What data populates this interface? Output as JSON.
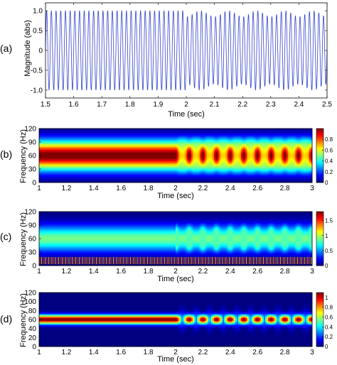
{
  "chart_data": [
    {
      "type": "line",
      "panel_label": "(a)",
      "xlabel": "Time (sec)",
      "ylabel": "Magnitude (abs)",
      "xlim": [
        1.5,
        2.5
      ],
      "ylim": [
        -1.2,
        1.2
      ],
      "x_ticks": [
        "1.5",
        "1.6",
        "1.7",
        "1.8",
        "1.9",
        "2",
        "2.1",
        "2.2",
        "2.3",
        "2.4",
        "2.5"
      ],
      "y_ticks": [
        "-1.0",
        "-0.5",
        "0",
        "0.5",
        "1.0"
      ],
      "series": [
        {
          "color": "#3344cc",
          "segments": [
            {
              "t_start": 1.5,
              "t_end": 2.0,
              "frequency_hz": 60,
              "amplitude": 1.0
            },
            {
              "t_start": 2.0,
              "t_end": 2.5,
              "frequency_hz": 60,
              "amplitude": 1.0,
              "modulation_hz": 10,
              "modulation_depth": 0.15
            }
          ]
        }
      ]
    },
    {
      "type": "heatmap",
      "panel_label": "(b)",
      "xlabel": "Time (sec)",
      "ylabel": "Frequency (Hz)",
      "xlim": [
        1,
        3
      ],
      "ylim": [
        0,
        120
      ],
      "x_ticks": [
        "1",
        "1.2",
        "1.4",
        "1.6",
        "1.8",
        "2",
        "2.2",
        "2.4",
        "2.6",
        "2.8",
        "3"
      ],
      "y_ticks": [
        "0",
        "30",
        "60",
        "90",
        "120"
      ],
      "colorbar_ticks": [
        "0",
        "0.2",
        "0.4",
        "0.6",
        "0.8"
      ],
      "colorbar_range": [
        0,
        1
      ],
      "colormap": "jet",
      "center_frequency_hz": 60,
      "modulation_start_sec": 2.0,
      "modulation_hz": 10
    },
    {
      "type": "heatmap",
      "panel_label": "(c)",
      "xlabel": "Time (sec)",
      "ylabel": "Frequency (Hz)",
      "xlim": [
        1,
        3
      ],
      "ylim": [
        0,
        120
      ],
      "x_ticks": [
        "1",
        "1.2",
        "1.4",
        "1.6",
        "1.8",
        "2",
        "2.2",
        "2.4",
        "2.6",
        "2.8",
        "3"
      ],
      "y_ticks": [
        "0",
        "30",
        "60",
        "90",
        "120"
      ],
      "colorbar_ticks": [
        "0",
        "0.5",
        "1",
        "1.5"
      ],
      "colorbar_range": [
        0,
        1.8
      ],
      "colormap": "jet",
      "center_frequency_hz": 60,
      "modulation_start_sec": 2.0,
      "modulation_hz": 10
    },
    {
      "type": "heatmap",
      "panel_label": "(d)",
      "xlabel": "Time (sec)",
      "ylabel": "Frequency (Hz)",
      "xlim": [
        1,
        3
      ],
      "ylim": [
        0,
        120
      ],
      "x_ticks": [
        "1",
        "1.2",
        "1.4",
        "1.6",
        "1.8",
        "2",
        "2.2",
        "2.4",
        "2.6",
        "2.8",
        "3"
      ],
      "y_ticks": [
        "0",
        "20",
        "40",
        "60",
        "80",
        "100",
        "120"
      ],
      "colorbar_ticks": [
        "0",
        "0.2",
        "0.4",
        "0.6",
        "0.8",
        "1"
      ],
      "colorbar_range": [
        0,
        1.1
      ],
      "colormap": "jet",
      "center_frequency_hz": 60,
      "modulation_start_sec": 2.0,
      "modulation_hz": 10
    }
  ]
}
